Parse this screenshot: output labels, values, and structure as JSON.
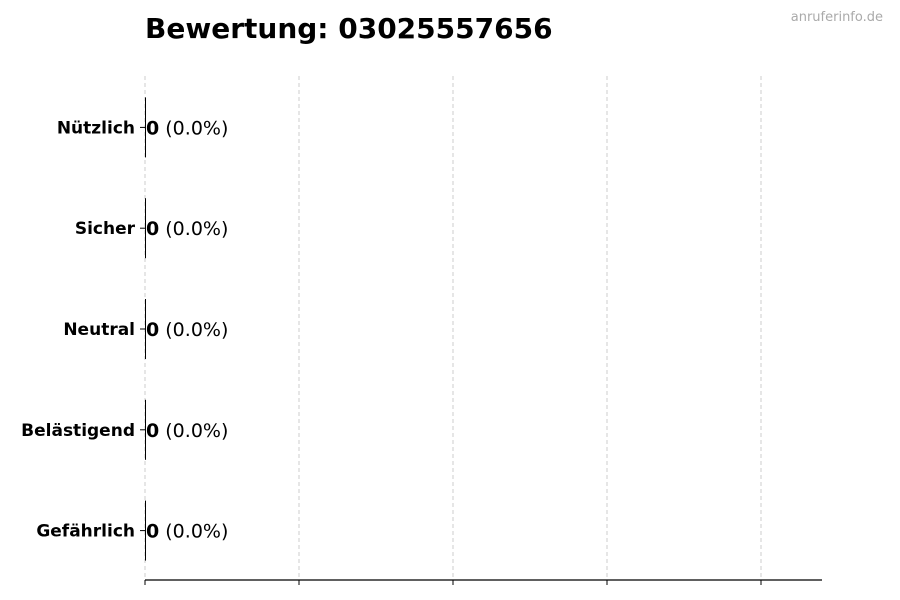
{
  "chart_data": {
    "type": "bar",
    "orientation": "horizontal",
    "title": "Bewertung: 03025557656",
    "categories": [
      "Nützlich",
      "Sicher",
      "Neutral",
      "Belästigend",
      "Gefährlich"
    ],
    "values": [
      0,
      0,
      0,
      0,
      0
    ],
    "value_labels": [
      "0",
      "0",
      "0",
      "0",
      "0"
    ],
    "percent_labels": [
      "(0.0%)",
      "(0.0%)",
      "(0.0%)",
      "(0.0%)",
      "(0.0%)"
    ],
    "xlim": [
      0,
      4.4
    ],
    "grid": "x dashed",
    "xtick_labels": "none",
    "bar_color": "#000000",
    "grid_color": "#cccccc"
  },
  "watermark": "anruferinfo.de"
}
